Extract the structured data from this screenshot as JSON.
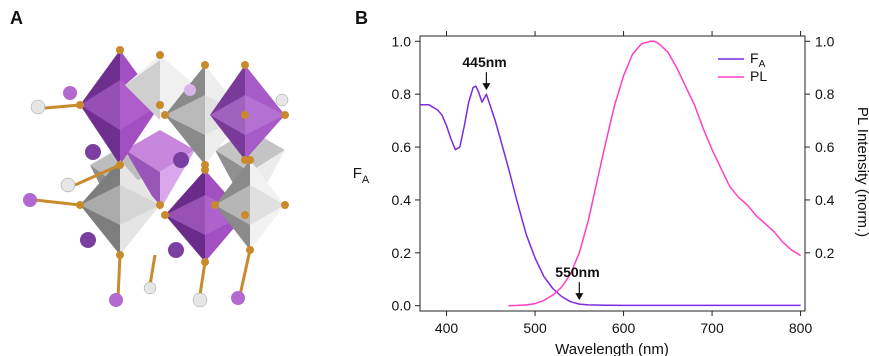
{
  "figure": {
    "panel_a_label": "A",
    "panel_b_label": "B"
  },
  "crystal": {
    "purple_octahedron": "#a24fc1",
    "purple_octahedron_dark": "#6e2f8e",
    "gray_octahedron": "#d8d8d8",
    "gray_octahedron_dark": "#7d7d7d",
    "vertex_atom": "#c98a2b",
    "free_atom": "#7a3fa0",
    "halide_purple": "#b36ad0",
    "halide_white": "#e6e6e6"
  },
  "chart_data": {
    "type": "line",
    "x_axis": {
      "label": "Wavelength (nm)",
      "range": [
        370,
        805
      ],
      "ticks": [
        400,
        500,
        600,
        700,
        800
      ]
    },
    "y_left": {
      "label_main": "F",
      "label_sub": "A",
      "range": [
        -0.02,
        1.02
      ],
      "ticks": [
        "0.0",
        "0.2",
        "0.4",
        "0.6",
        "0.8",
        "1.0"
      ],
      "tick_values": [
        0.0,
        0.2,
        0.4,
        0.6,
        0.8,
        1.0
      ]
    },
    "y_right": {
      "label": "PL Intensity (norm.)",
      "ticks": [
        "0.2",
        "0.4",
        "0.6",
        "0.8",
        "1.0"
      ],
      "tick_values": [
        0.2,
        0.4,
        0.6,
        0.8,
        1.0
      ]
    },
    "series": [
      {
        "name_main": "F",
        "name_sub": "A",
        "color": "#7b2be0",
        "x": [
          370,
          380,
          390,
          395,
          400,
          405,
          410,
          415,
          420,
          425,
          430,
          433,
          436,
          440,
          445,
          450,
          455,
          460,
          470,
          480,
          490,
          500,
          510,
          520,
          530,
          540,
          550,
          560,
          580,
          600,
          650,
          700,
          750,
          800
        ],
        "y": [
          0.76,
          0.76,
          0.74,
          0.72,
          0.68,
          0.63,
          0.59,
          0.6,
          0.68,
          0.77,
          0.825,
          0.83,
          0.81,
          0.77,
          0.8,
          0.75,
          0.7,
          0.64,
          0.52,
          0.39,
          0.27,
          0.18,
          0.11,
          0.065,
          0.035,
          0.015,
          0.006,
          0.003,
          0.002,
          0.001,
          0.001,
          0.001,
          0.001,
          0.001
        ]
      },
      {
        "name": "PL",
        "color": "#ff3fc3",
        "x": [
          470,
          480,
          490,
          500,
          510,
          520,
          530,
          540,
          550,
          560,
          570,
          580,
          590,
          600,
          610,
          620,
          630,
          635,
          640,
          650,
          660,
          670,
          680,
          690,
          700,
          710,
          720,
          730,
          740,
          750,
          760,
          770,
          780,
          790,
          800
        ],
        "y": [
          0.0,
          0.001,
          0.003,
          0.008,
          0.02,
          0.04,
          0.07,
          0.12,
          0.2,
          0.32,
          0.47,
          0.62,
          0.76,
          0.87,
          0.95,
          0.99,
          1.0,
          1.0,
          0.99,
          0.96,
          0.9,
          0.83,
          0.76,
          0.67,
          0.59,
          0.52,
          0.45,
          0.41,
          0.38,
          0.34,
          0.31,
          0.28,
          0.24,
          0.21,
          0.19
        ]
      }
    ],
    "annotations": [
      {
        "text": "445nm",
        "x": 445,
        "y": 0.8
      },
      {
        "text": "550nm",
        "x": 550,
        "y": 0.006
      }
    ],
    "legend_position": "top-right"
  }
}
